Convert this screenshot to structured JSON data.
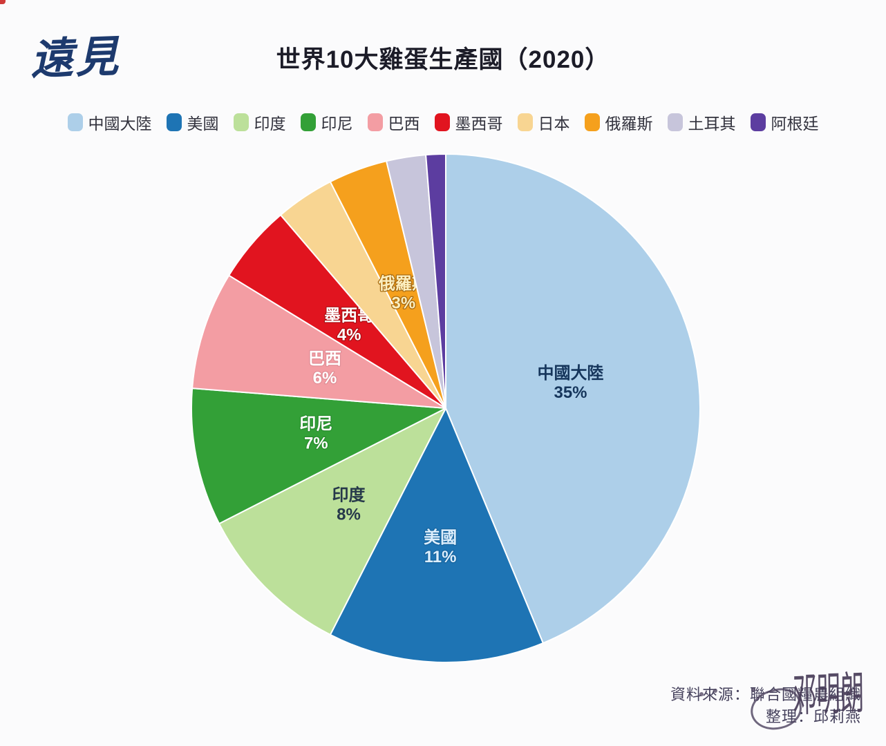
{
  "logo": {
    "text": "遠見",
    "color": "#1d3a6e"
  },
  "source": {
    "line1": "資料來源：聯合國糧農組織",
    "line2": "整理：邱莉燕"
  },
  "watermark": {
    "text": "邓明朗"
  },
  "chart_data": {
    "type": "pie",
    "title": "世界10大雞蛋生產國（2020）",
    "unit": "percent",
    "start_angle_deg": 0,
    "direction": "clockwise",
    "legend_position": "top",
    "background": "#fbfbfc",
    "slices": [
      {
        "name": "中國大陸",
        "value": 35,
        "pct_label": "35%",
        "color": "#adcfe9",
        "show_label": true,
        "label_color": "#16365c",
        "label_outline": null,
        "label_r": 0.5
      },
      {
        "name": "美國",
        "value": 11,
        "pct_label": "11%",
        "color": "#1e74b4",
        "show_label": true,
        "label_color": "#ddeefc",
        "label_outline": "#14639e",
        "label_r": 0.55
      },
      {
        "name": "印度",
        "value": 8,
        "pct_label": "8%",
        "color": "#bce09a",
        "show_label": true,
        "label_color": "#26384a",
        "label_outline": null,
        "label_r": 0.54
      },
      {
        "name": "印尼",
        "value": 7,
        "pct_label": "7%",
        "color": "#33a037",
        "show_label": true,
        "label_color": "#ffffff",
        "label_outline": "#278c2d",
        "label_r": 0.52
      },
      {
        "name": "巴西",
        "value": 6,
        "pct_label": "6%",
        "color": "#f39da3",
        "show_label": true,
        "label_color": "#ffffff",
        "label_outline": "#e08d95",
        "label_r": 0.5
      },
      {
        "name": "墨西哥",
        "value": 4,
        "pct_label": "4%",
        "color": "#e1141f",
        "show_label": true,
        "label_color": "#ffffff",
        "label_outline": "#ab0f15",
        "label_r": 0.5
      },
      {
        "name": "日本",
        "value": 3,
        "pct_label": "3%",
        "color": "#f8d592",
        "show_label": false,
        "label_color": "#ffffff",
        "label_outline": null,
        "label_r": 0.5
      },
      {
        "name": "俄羅斯",
        "value": 3,
        "pct_label": "3%",
        "color": "#f5a01d",
        "show_label": true,
        "label_color": "#fcefc0",
        "label_outline": "#a76a10",
        "label_r": 0.48
      },
      {
        "name": "土耳其",
        "value": 2,
        "pct_label": "2%",
        "color": "#c7c5db",
        "show_label": false,
        "label_color": "#ffffff",
        "label_outline": null,
        "label_r": 0.5
      },
      {
        "name": "阿根廷",
        "value": 1,
        "pct_label": "1%",
        "color": "#5c3da0",
        "show_label": false,
        "label_color": "#ffffff",
        "label_outline": null,
        "label_r": 0.5
      }
    ]
  }
}
